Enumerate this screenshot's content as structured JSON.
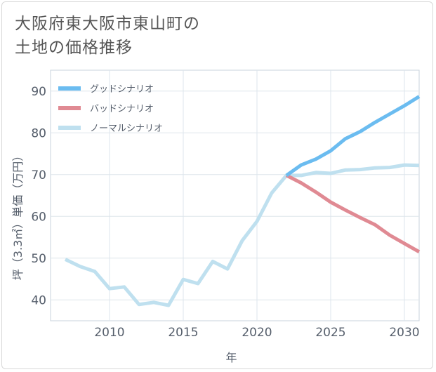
{
  "title_lines": [
    "大阪府東大阪市東山町の",
    "土地の価格推移"
  ],
  "chart_data": {
    "type": "line",
    "xlabel": "年",
    "ylabel": "坪（3.3㎡）単価（万円）",
    "xlim": [
      2006,
      2031
    ],
    "ylim": [
      35,
      95
    ],
    "xticks": [
      2010,
      2015,
      2020,
      2025,
      2030
    ],
    "yticks": [
      40,
      50,
      60,
      70,
      80,
      90
    ],
    "grid": true,
    "legend_position": "top-left",
    "series": [
      {
        "name": "グッドシナリオ",
        "color": "#6bbcf0",
        "x": [
          2022,
          2023,
          2024,
          2025,
          2026,
          2027,
          2028,
          2029,
          2030,
          2031
        ],
        "y": [
          69.8,
          72.3,
          73.7,
          75.7,
          78.6,
          80.3,
          82.5,
          84.5,
          86.5,
          88.7
        ]
      },
      {
        "name": "バッドシナリオ",
        "color": "#e08a93",
        "x": [
          2022,
          2023,
          2024,
          2025,
          2026,
          2027,
          2028,
          2029,
          2030,
          2031
        ],
        "y": [
          69.8,
          68.0,
          65.8,
          63.4,
          61.5,
          59.7,
          58.0,
          55.5,
          53.5,
          51.5
        ]
      },
      {
        "name": "ノーマルシナリオ",
        "color": "#bfe0ef",
        "x": [
          2007,
          2008,
          2009,
          2010,
          2011,
          2012,
          2013,
          2014,
          2015,
          2016,
          2017,
          2018,
          2019,
          2020,
          2021,
          2022,
          2023,
          2024,
          2025,
          2026,
          2027,
          2028,
          2029,
          2030,
          2031
        ],
        "y": [
          49.7,
          48.0,
          46.8,
          42.7,
          43.1,
          38.9,
          39.4,
          38.7,
          44.9,
          43.9,
          49.2,
          47.4,
          54.2,
          58.8,
          65.6,
          69.8,
          69.8,
          70.5,
          70.3,
          71.1,
          71.2,
          71.6,
          71.7,
          72.3,
          72.2
        ]
      }
    ]
  }
}
